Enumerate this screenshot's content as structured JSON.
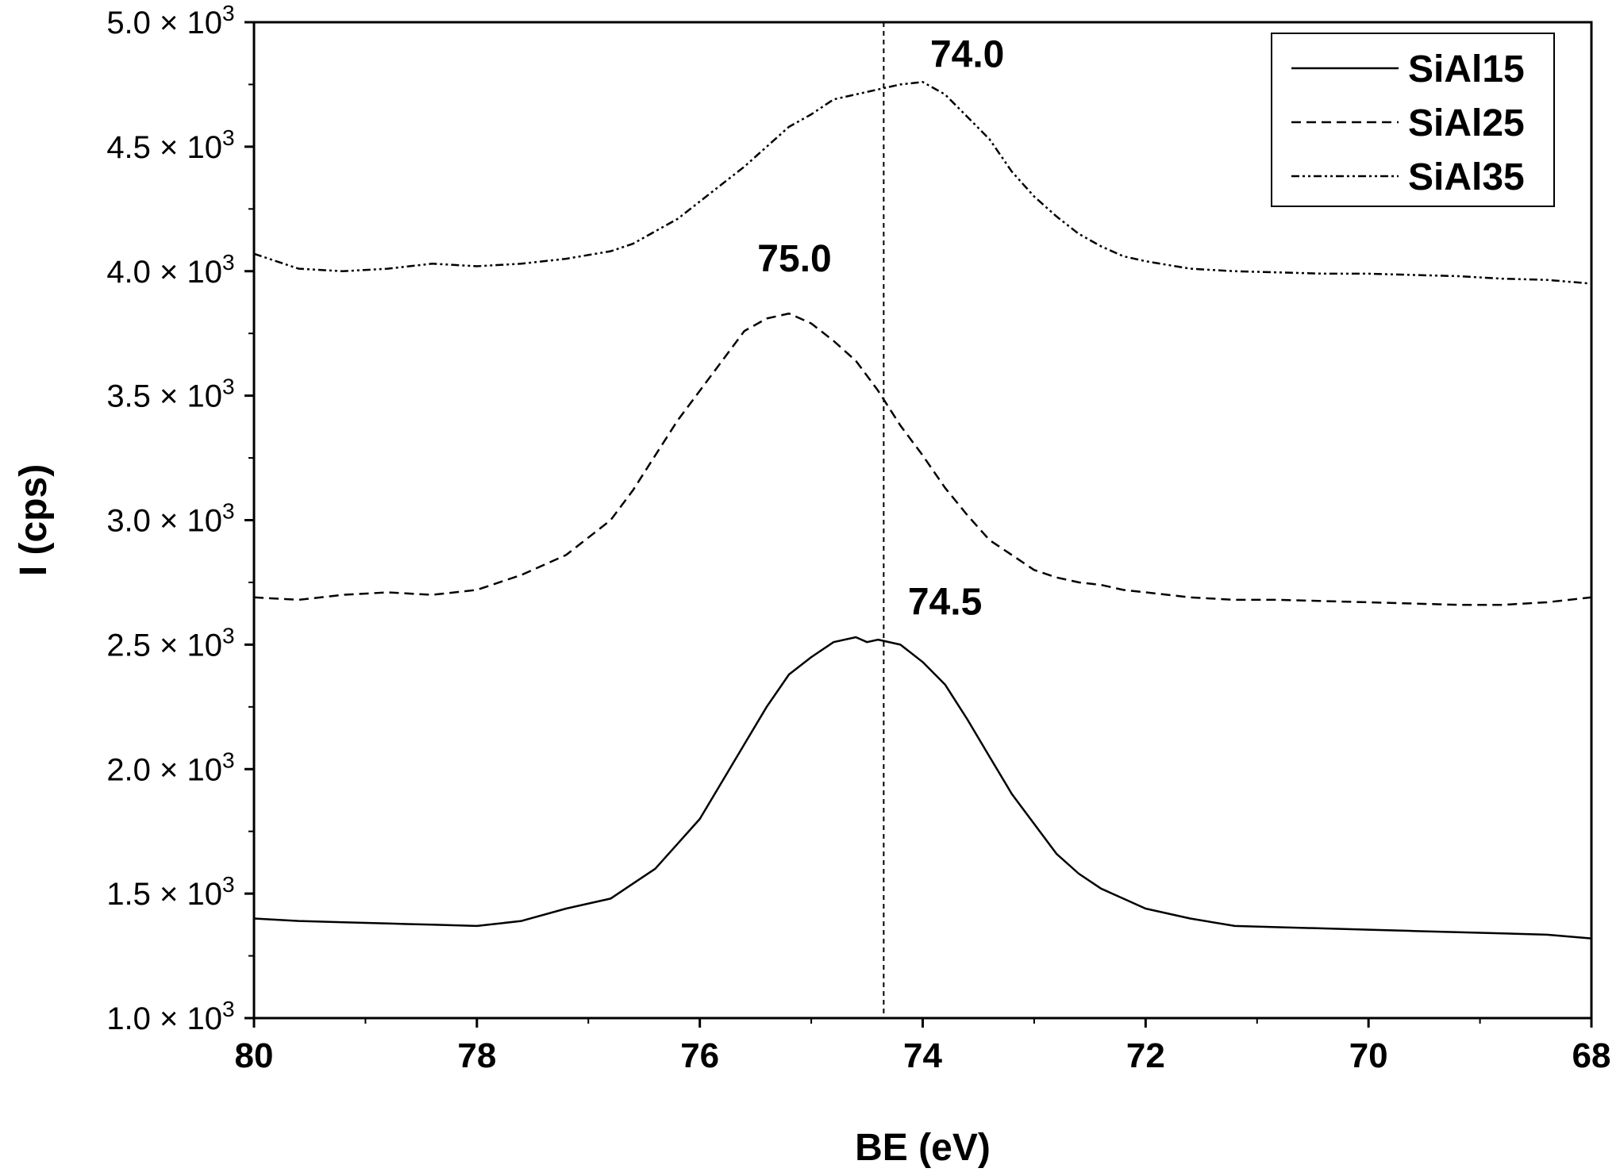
{
  "chart_data": {
    "type": "line",
    "title": "",
    "xlabel": "BE (eV)",
    "ylabel": "I (cps)",
    "xlim": [
      80,
      68
    ],
    "ylim": [
      1000,
      5000
    ],
    "x_ticks": [
      80,
      78,
      76,
      74,
      72,
      70,
      68
    ],
    "x_tick_labels": [
      "80",
      "78",
      "76",
      "74",
      "72",
      "70",
      "68"
    ],
    "y_ticks": [
      1000,
      1500,
      2000,
      2500,
      3000,
      3500,
      4000,
      4500,
      5000
    ],
    "y_tick_labels": [
      "1.0 × 10",
      "1.5 × 10",
      "2.0 × 10",
      "2.5 × 10",
      "3.0 × 10",
      "3.5 × 10",
      "4.0 × 10",
      "4.5 × 10",
      "5.0 × 10"
    ],
    "y_tick_exponent": "3",
    "grid": false,
    "legend_position": "top-right",
    "reference_line_x": 74.35,
    "series": [
      {
        "name": "SiAl15",
        "style": "solid",
        "x": [
          80,
          79.6,
          79.2,
          78.8,
          78.4,
          78.0,
          77.6,
          77.2,
          76.8,
          76.6,
          76.4,
          76.2,
          76.0,
          75.8,
          75.6,
          75.4,
          75.2,
          75.0,
          74.8,
          74.6,
          74.5,
          74.4,
          74.2,
          74.0,
          73.8,
          73.6,
          73.4,
          73.2,
          73.0,
          72.8,
          72.6,
          72.4,
          72.2,
          72.0,
          71.6,
          71.2,
          70.8,
          70.4,
          70.0,
          69.6,
          69.2,
          68.8,
          68.4,
          68.0
        ],
        "y": [
          1400,
          1390,
          1385,
          1380,
          1375,
          1370,
          1390,
          1440,
          1480,
          1540,
          1600,
          1700,
          1800,
          1950,
          2100,
          2250,
          2380,
          2450,
          2510,
          2530,
          2510,
          2520,
          2500,
          2430,
          2340,
          2200,
          2050,
          1900,
          1780,
          1660,
          1580,
          1520,
          1480,
          1440,
          1400,
          1370,
          1365,
          1360,
          1355,
          1350,
          1345,
          1340,
          1335,
          1320
        ]
      },
      {
        "name": "SiAl25",
        "style": "dashed",
        "x": [
          80,
          79.6,
          79.2,
          78.8,
          78.4,
          78.0,
          77.6,
          77.2,
          76.8,
          76.6,
          76.4,
          76.2,
          76.0,
          75.8,
          75.6,
          75.4,
          75.2,
          75.0,
          74.8,
          74.6,
          74.4,
          74.2,
          74.0,
          73.8,
          73.6,
          73.4,
          73.2,
          73.0,
          72.8,
          72.6,
          72.4,
          72.2,
          72.0,
          71.6,
          71.2,
          70.8,
          70.4,
          70.0,
          69.6,
          69.2,
          68.8,
          68.4,
          68.0
        ],
        "y": [
          2690,
          2680,
          2700,
          2710,
          2700,
          2720,
          2780,
          2860,
          3000,
          3120,
          3260,
          3400,
          3520,
          3640,
          3760,
          3810,
          3830,
          3790,
          3720,
          3640,
          3520,
          3380,
          3260,
          3130,
          3020,
          2920,
          2860,
          2800,
          2770,
          2750,
          2740,
          2720,
          2710,
          2690,
          2680,
          2680,
          2675,
          2670,
          2665,
          2660,
          2660,
          2670,
          2690
        ]
      },
      {
        "name": "SiAl35",
        "style": "dash-dot-dot",
        "x": [
          80,
          79.6,
          79.2,
          78.8,
          78.4,
          78.0,
          77.6,
          77.2,
          76.8,
          76.6,
          76.4,
          76.2,
          76.0,
          75.8,
          75.6,
          75.4,
          75.2,
          75.0,
          74.8,
          74.6,
          74.4,
          74.2,
          74.0,
          73.8,
          73.6,
          73.4,
          73.2,
          73.0,
          72.8,
          72.6,
          72.4,
          72.2,
          72.0,
          71.6,
          71.2,
          70.8,
          70.4,
          70.0,
          69.6,
          69.2,
          68.8,
          68.4,
          68.0
        ],
        "y": [
          4070,
          4010,
          4000,
          4010,
          4030,
          4020,
          4030,
          4050,
          4080,
          4110,
          4160,
          4210,
          4280,
          4350,
          4420,
          4500,
          4580,
          4630,
          4690,
          4710,
          4730,
          4750,
          4760,
          4710,
          4620,
          4530,
          4400,
          4300,
          4220,
          4150,
          4100,
          4060,
          4040,
          4010,
          4000,
          3995,
          3990,
          3990,
          3985,
          3980,
          3970,
          3965,
          3950
        ]
      }
    ],
    "annotations": [
      {
        "text": "74.0",
        "x": 73.6,
        "y": 4820
      },
      {
        "text": "75.0",
        "x": 75.15,
        "y": 4000
      },
      {
        "text": "74.5",
        "x": 73.8,
        "y": 2620
      }
    ]
  },
  "legend": {
    "items": [
      "SiAl15",
      "SiAl25",
      "SiAl35"
    ]
  }
}
